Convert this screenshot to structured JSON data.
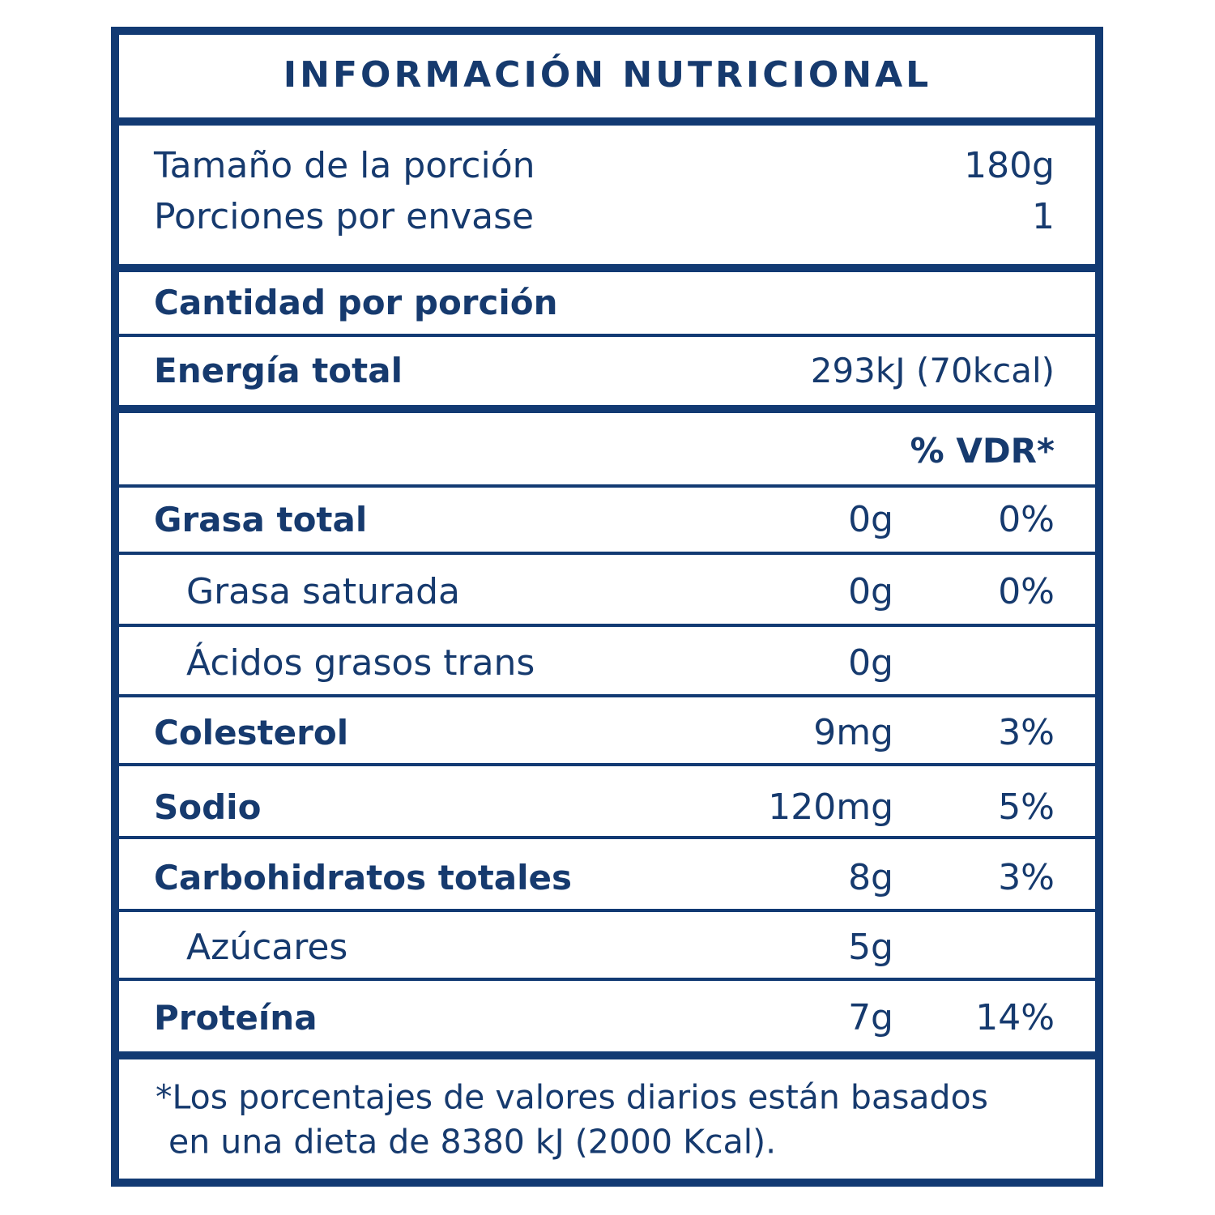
{
  "title": "INFORMACIÓN NUTRICIONAL",
  "serving": [
    {
      "label": "Tamaño de la porción",
      "value": "180g"
    },
    {
      "label": "Porciones por envase",
      "value": "1"
    }
  ],
  "amount_header": "Cantidad por porción",
  "energy": {
    "label": "Energía total",
    "value": "293kJ (70kcal)"
  },
  "dv_header": "% VDR*",
  "nutrients": [
    {
      "label": "Grasa total",
      "amount": "0g",
      "dv": "0%",
      "indent": false
    },
    {
      "label": "Grasa saturada",
      "amount": "0g",
      "dv": "0%",
      "indent": true
    },
    {
      "label": "Ácidos grasos trans",
      "amount": "0g",
      "indent": true
    },
    {
      "label": "Colesterol",
      "amount": "9mg",
      "dv": "3%",
      "indent": false
    },
    {
      "label": "Sodio",
      "amount": "120mg",
      "dv": "5%",
      "indent": false
    },
    {
      "label": "Carbohidratos totales",
      "amount": "8g",
      "dv": "3%",
      "indent": false
    },
    {
      "label": "Azúcares",
      "amount": "5g",
      "indent": true
    },
    {
      "label": "Proteína",
      "amount": "7g",
      "dv": "14%",
      "indent": false
    }
  ],
  "footnote": [
    "*Los porcentajes de valores diarios están basados",
    "en una dieta de 8380 kJ (2000 Kcal)."
  ]
}
